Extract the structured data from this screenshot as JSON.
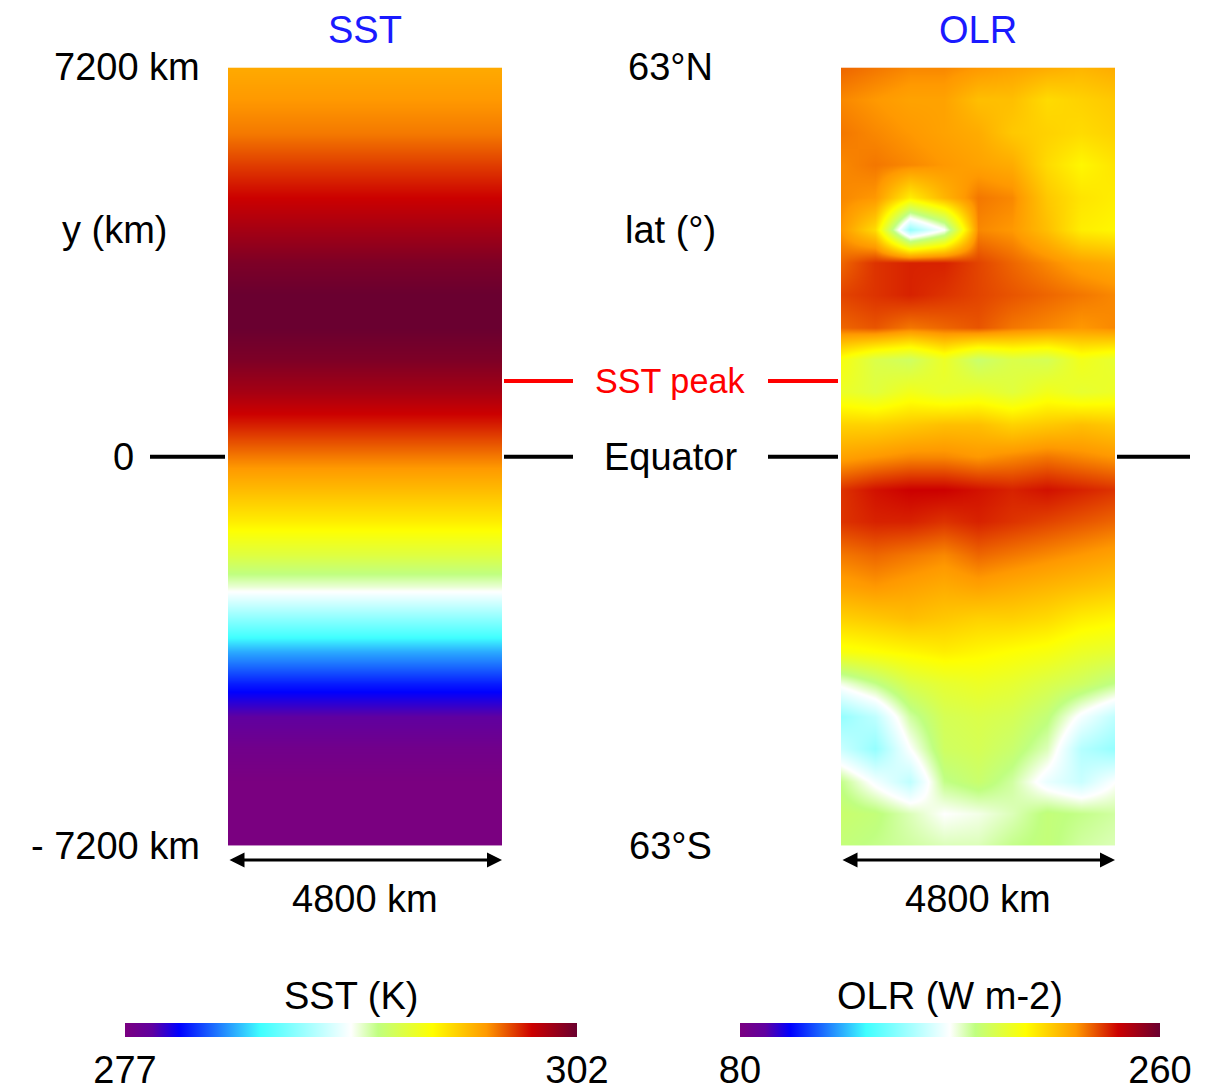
{
  "chart_data": [
    {
      "type": "heatmap",
      "title": "SST",
      "x_label": "4800 km",
      "y_label": "y (km)",
      "xlim": [
        0,
        4800
      ],
      "ylim": [
        -7200,
        7200
      ],
      "yticks": [
        {
          "value": 7200,
          "label": "7200 km"
        },
        {
          "value": 0,
          "label": "0"
        },
        {
          "value": -7200,
          "label": "- 7200 km"
        }
      ],
      "y": [
        -7200,
        -6600,
        -6000,
        -5400,
        -4800,
        -4200,
        -3600,
        -3000,
        -2400,
        -1800,
        -1200,
        -600,
        0,
        600,
        1200,
        1800,
        2400,
        3000,
        3600,
        4200,
        4800,
        5400,
        6000,
        6600,
        7200
      ],
      "values": [
        277,
        277,
        277,
        277.5,
        278.5,
        280.5,
        283,
        286.5,
        290,
        292.5,
        294.5,
        296,
        297.5,
        299,
        300.5,
        301.5,
        302,
        302,
        301.5,
        300.5,
        299.5,
        298.5,
        297.5,
        297,
        296.5
      ],
      "colorbar": {
        "title": "SST (K)",
        "range": [
          277,
          302
        ],
        "ticks": [
          277,
          302
        ]
      },
      "annotations": [
        {
          "text": "SST peak",
          "y": 1400,
          "color": "red"
        }
      ]
    },
    {
      "type": "heatmap",
      "title": "OLR",
      "x_label": "4800 km",
      "y_label": "lat (°)",
      "xlim": [
        0,
        4800
      ],
      "ylim": [
        -7200,
        7200
      ],
      "yticks": [
        {
          "value": 7200,
          "label": "63°N"
        },
        {
          "value": 0,
          "label": "Equator"
        },
        {
          "value": -7200,
          "label": "63°S"
        }
      ],
      "x": [
        0,
        600,
        1200,
        1800,
        2400,
        3000,
        3600,
        4200,
        4800
      ],
      "y": [
        -7200,
        -6600,
        -6000,
        -5400,
        -4800,
        -4200,
        -3600,
        -3000,
        -2400,
        -1800,
        -1200,
        -600,
        0,
        600,
        1200,
        1800,
        2400,
        3000,
        3600,
        4200,
        4800,
        5400,
        6000,
        6600,
        7200
      ],
      "cells": [
        [
          182,
          180,
          178,
          176,
          176,
          180,
          182,
          178,
          176
        ],
        [
          184,
          182,
          176,
          170,
          172,
          176,
          182,
          180,
          178
        ],
        [
          180,
          168,
          158,
          180,
          184,
          178,
          166,
          160,
          170
        ],
        [
          160,
          150,
          170,
          186,
          188,
          184,
          176,
          156,
          150
        ],
        [
          150,
          158,
          178,
          188,
          190,
          188,
          182,
          168,
          158
        ],
        [
          172,
          180,
          190,
          194,
          196,
          194,
          190,
          186,
          180
        ],
        [
          200,
          202,
          204,
          206,
          204,
          202,
          200,
          196,
          194
        ],
        [
          212,
          214,
          216,
          214,
          212,
          212,
          210,
          206,
          204
        ],
        [
          222,
          224,
          222,
          220,
          222,
          220,
          218,
          216,
          214
        ],
        [
          228,
          230,
          228,
          226,
          230,
          228,
          226,
          224,
          222
        ],
        [
          236,
          238,
          238,
          236,
          238,
          236,
          234,
          232,
          230
        ],
        [
          236,
          240,
          242,
          242,
          240,
          238,
          240,
          238,
          236
        ],
        [
          222,
          224,
          226,
          226,
          224,
          226,
          228,
          226,
          224
        ],
        [
          212,
          212,
          214,
          216,
          216,
          212,
          214,
          216,
          214
        ],
        [
          196,
          192,
          198,
          194,
          196,
          192,
          198,
          194,
          196
        ],
        [
          200,
          190,
          186,
          196,
          184,
          190,
          188,
          198,
          194
        ],
        [
          230,
          232,
          228,
          230,
          232,
          228,
          226,
          224,
          226
        ],
        [
          234,
          236,
          238,
          236,
          234,
          232,
          230,
          228,
          226
        ],
        [
          230,
          236,
          238,
          238,
          234,
          230,
          226,
          222,
          220
        ],
        [
          224,
          210,
          150,
          170,
          226,
          224,
          216,
          206,
          204
        ],
        [
          226,
          224,
          206,
          218,
          228,
          226,
          214,
          208,
          206
        ],
        [
          226,
          228,
          226,
          224,
          222,
          220,
          210,
          204,
          208
        ],
        [
          228,
          226,
          224,
          222,
          220,
          214,
          212,
          210,
          212
        ],
        [
          226,
          224,
          222,
          222,
          216,
          216,
          210,
          212,
          214
        ],
        [
          230,
          228,
          226,
          226,
          224,
          222,
          220,
          218,
          220
        ]
      ],
      "colorbar": {
        "title": "OLR (W m-2)",
        "range": [
          80,
          260
        ],
        "ticks": [
          80,
          260
        ]
      }
    }
  ]
}
